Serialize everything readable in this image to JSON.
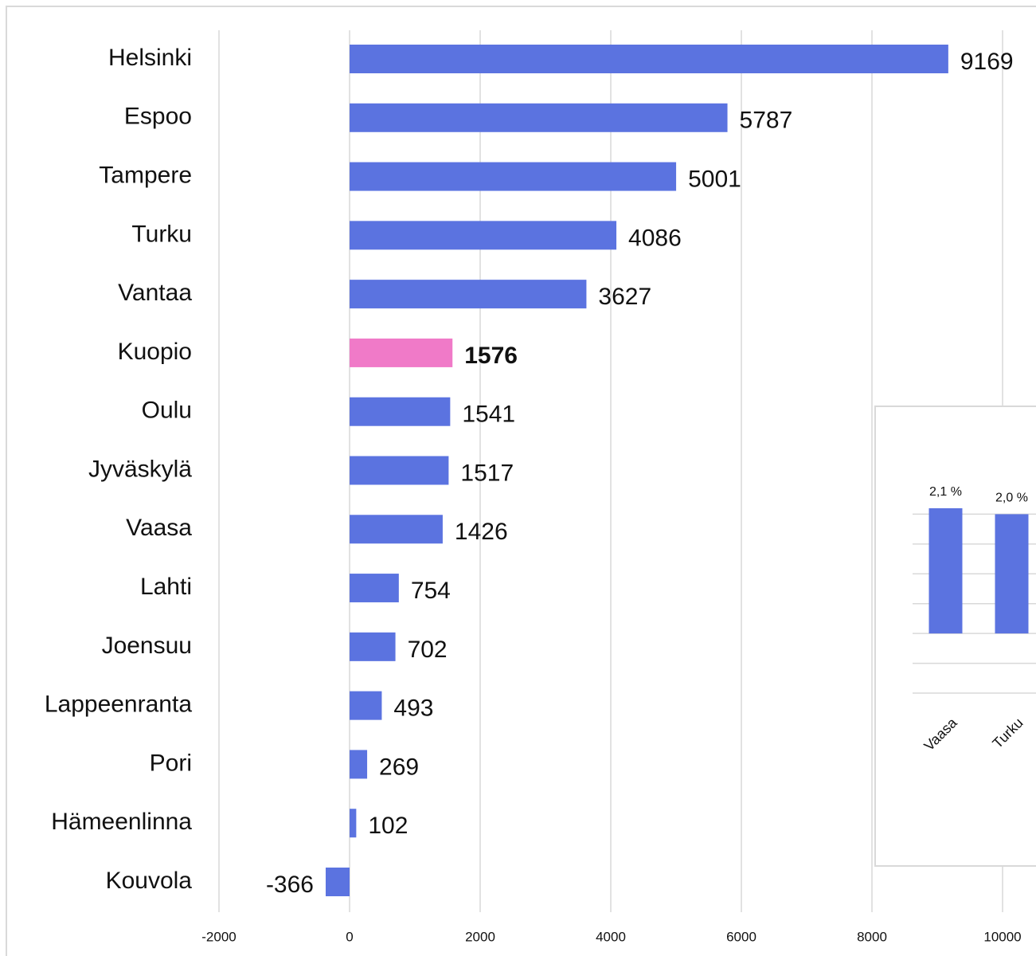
{
  "chart_data": [
    {
      "type": "bar",
      "orientation": "horizontal",
      "categories": [
        "Helsinki",
        "Espoo",
        "Tampere",
        "Turku",
        "Vantaa",
        "Kuopio",
        "Oulu",
        "Jyväskylä",
        "Vaasa",
        "Lahti",
        "Joensuu",
        "Lappeenranta",
        "Pori",
        "Hämeenlinna",
        "Kouvola"
      ],
      "values": [
        9169,
        5787,
        5001,
        4086,
        3627,
        1576,
        1541,
        1517,
        1426,
        754,
        702,
        493,
        269,
        102,
        -366
      ],
      "color": "#5b73e0",
      "highlight": "Kuopio",
      "highlight_color": "#f07ac8",
      "xlim": [
        -2000,
        10000
      ],
      "xticks": [
        -2000,
        0,
        2000,
        4000,
        6000,
        8000,
        10000
      ],
      "grid": true
    },
    {
      "type": "bar",
      "orientation": "vertical",
      "categories": [
        "Vaasa",
        "Turku"
      ],
      "values": [
        2.1,
        2.0
      ],
      "value_labels": [
        "2,1 %",
        "2,0 %"
      ],
      "color": "#5b73e0",
      "ylim": [
        -1,
        2.5
      ],
      "yticks": [
        -1,
        -0.5,
        0,
        0.5,
        1,
        1.5,
        2
      ],
      "grid": true
    }
  ]
}
